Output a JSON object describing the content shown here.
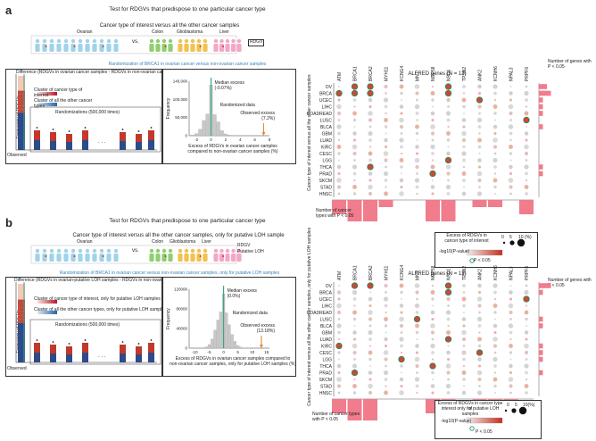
{
  "panels": [
    {
      "label": "a",
      "title": "Test for RDGVs that predispose to one particular cancer type",
      "ci_label": "Cancer type of interest versus all the other cancer samples",
      "groups": {
        "ovarian": "Ovarian",
        "vs": "vs.",
        "colon": "Colon",
        "glioblastoma": "Glioblastoma",
        "liver": "Liver",
        "rdgv": "RDGV"
      },
      "randomization_label": "Randomization of BRCA1 in ovarian cancer versus non-ovarian cancer samples",
      "difference_label": "Difference (RDGVs in ovarian cancer samples - RDGVs in non-ovarian cancer samples)",
      "freq_label": "Frequency of RDGVs",
      "cluster_interest": "Cluster of cancer type of interest",
      "cluster_other": "Cluster of all the other cancer types",
      "randomizations": "Randomizations (500,000 times)",
      "ellipsis": ". . .",
      "observed": "Observed",
      "hist": {
        "ylabel": "Frequency",
        "yticks": [
          "0",
          "50,000",
          "100,000",
          "140,000"
        ],
        "xticks": [
          "-2",
          "0",
          "2",
          "4",
          "6",
          "8"
        ],
        "median": "Median excess (-0.07%)",
        "randomized": "Randomized data",
        "observed": "Observed excess (7.2%)",
        "xlabel1": "Excess of RDGVs in ovarian cancer samples",
        "xlabel2": "compared to non-ovarian cancer samples (%)",
        "xs": [
          -2.5,
          -2,
          -1.5,
          -1,
          -0.5,
          0,
          0.5,
          1,
          1.5,
          2,
          2.5,
          3,
          3.5
        ],
        "counts": [
          2000,
          6000,
          18000,
          42000,
          60000,
          140000,
          58000,
          38000,
          14000,
          5000,
          2000,
          600,
          200
        ],
        "observed_x": 7.2
      },
      "alfred_title": "ALFRED genes (N = 13)",
      "yaxis_label": "Cancer type of interest versus all the other cancer samples",
      "right_label": "Number of genes with P < 0.05",
      "bottom_label": "Number of cancer types with P < 0.05",
      "legend_title1": "Excess of RDGVs in",
      "legend_title2": "cancer type of interest",
      "legend_sizes": [
        "0",
        "5",
        "10 (%)"
      ],
      "legend_pval": "-log10(P-value)",
      "legend_sig": "P < 0.05",
      "genes": [
        "ATM",
        "BRCA1",
        "BRCA2",
        "MYH11",
        "KCNG4",
        "MNT",
        "NOP58",
        "NSD1",
        "TPSN2",
        "ANK2",
        "KCNH6",
        "NPAL3",
        "PRPF6"
      ],
      "cancers": [
        "OV",
        "BRCA",
        "UCEC",
        "LIHC",
        "COADREAD",
        "LUSC",
        "BLCA",
        "GBM",
        "LUAD",
        "KIRC",
        "CESC",
        "LGG",
        "THCA",
        "PRAD",
        "SKCM",
        "STAD",
        "HNSC"
      ],
      "right_bars": [
        2,
        3,
        1,
        1,
        1,
        0,
        1,
        0,
        0,
        0,
        0,
        0,
        1,
        1,
        0,
        0,
        0
      ],
      "bottom_bars": [
        2,
        3,
        3,
        1,
        0,
        0,
        3,
        3,
        0,
        1,
        1,
        0,
        2
      ],
      "sig_cells": [
        [
          0,
          1
        ],
        [
          0,
          2
        ],
        [
          0,
          7
        ],
        [
          1,
          0
        ],
        [
          1,
          1
        ],
        [
          1,
          2
        ],
        [
          1,
          7
        ],
        [
          2,
          9
        ],
        [
          5,
          12
        ],
        [
          11,
          7
        ],
        [
          13,
          6
        ],
        [
          12,
          2
        ]
      ]
    },
    {
      "label": "b",
      "title": "Test for RDGVs that predispose to one particular cancer type",
      "ci_label": "Cancer type of interest versus all the other cancer samples, only for putative LOH sample",
      "groups": {
        "ovarian": "Ovarian",
        "vs": "vs.",
        "colon": "Colon",
        "glioblastoma": "Glioblastoma",
        "liver": "Liver",
        "rdgv": "RDGV",
        "loh": "Putative LOH"
      },
      "randomization_label": "Randomization of BRCA1 in ovarian cancer versus non-ovarian cancer samples, only for putative LOH samples",
      "difference_label": "Difference (RDGVs in ovarian-putative LOH samples - RDGVs in non-ovarian putative LOH samples)",
      "freq_label": "Frequency of RDGVs",
      "cluster_interest": "Cluster of cancer type of interest, only for putative LOH samples",
      "cluster_other": "Cluster of all the other cancer types, only for putative LOH samples",
      "randomizations": "Randomizations (500,000 times)",
      "ellipsis": ". . .",
      "observed": "Observed",
      "hist": {
        "ylabel": "Frequency",
        "yticks": [
          "0",
          "40000",
          "80000",
          "120000"
        ],
        "xticks": [
          "-10",
          "-5",
          "0",
          "5",
          "10",
          "15"
        ],
        "median": "Median excess (0.0%)",
        "randomized": "Randomized data",
        "observed": "Observed excess (13.18%)",
        "xlabel1": "Excess of RDGVs in ovarian cancer samples compared to",
        "xlabel2": "non-ovarian cancer samples, only for putative LOH samples (%)",
        "xs": [
          -6,
          -5,
          -4,
          -3,
          -2,
          -1,
          0,
          1,
          2,
          3,
          4,
          5,
          6,
          7
        ],
        "counts": [
          3000,
          8000,
          20000,
          40000,
          62000,
          80000,
          120000,
          78000,
          52000,
          30000,
          15000,
          6000,
          2500,
          800
        ],
        "observed_x": 13.18
      },
      "alfred_title": "ALFRED genes (N = 13)",
      "yaxis_label": "Cancer type of interest versus all the other cancer samples, only for putative LOH samples",
      "right_label": "Number of genes with P < 0.05",
      "bottom_label": "Number of cancer types with P < 0.05",
      "legend_title1": "Excess of RDGVs in cancer type of",
      "legend_title2": "interest only for putative LOH samples",
      "legend_sizes": [
        "0",
        "5",
        "10(%)"
      ],
      "legend_pval": "-log10(P-value)",
      "legend_sig": "P < 0.05",
      "genes": [
        "ATM",
        "BRCA1",
        "BRCA2",
        "MYH11",
        "KCNG4",
        "MNT",
        "NOP58",
        "NSD1",
        "TPSN2",
        "ANK2",
        "KCNH6",
        "NPAL3",
        "PRPF6"
      ],
      "cancers": [
        "OV",
        "BRCA",
        "UCEC",
        "LIHC",
        "COADREAD",
        "LUSC",
        "BLCA",
        "GBM",
        "LUAD",
        "KIRC",
        "CESC",
        "LGG",
        "THCA",
        "PRAD",
        "SKCM",
        "STAD",
        "HNSC"
      ],
      "right_bars": [
        3,
        1,
        0,
        0,
        0,
        1,
        1,
        0,
        0,
        1,
        1,
        1,
        0,
        1,
        0,
        0,
        0
      ],
      "bottom_bars": [
        2,
        3,
        3,
        0,
        0,
        0,
        2,
        2,
        0,
        2,
        2,
        2,
        0
      ],
      "sig_cells": [
        [
          0,
          1
        ],
        [
          0,
          2
        ],
        [
          0,
          7
        ],
        [
          1,
          7
        ],
        [
          2,
          12
        ],
        [
          5,
          5
        ],
        [
          8,
          7
        ],
        [
          9,
          0
        ],
        [
          10,
          9
        ],
        [
          11,
          4
        ],
        [
          12,
          6
        ],
        [
          13,
          1
        ]
      ]
    }
  ],
  "colors": {
    "sig": "#1f8a6e",
    "bar": "#f07c8c",
    "hist": "#c8c8c8",
    "median": "#3aa58c",
    "observed": "#e98a2c",
    "blue": "#3a82b6"
  }
}
